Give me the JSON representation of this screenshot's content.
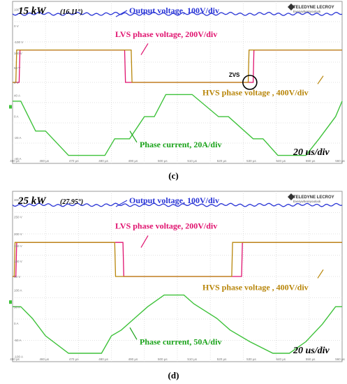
{
  "logo": {
    "brand": "TELEDYNE LECROY",
    "tagline": "Everywhereyoulook"
  },
  "colors": {
    "output": "#2a35d6",
    "lvs": "#e0136f",
    "hvs": "#b8860b",
    "current": "#3ec23a",
    "grid": "#d8d8d8",
    "annot_output": "#2a35d6",
    "annot_lvs": "#e0136f",
    "annot_hvs": "#b8860b",
    "annot_current": "#1aa31a"
  },
  "chart_data": [
    {
      "type": "line",
      "caption": "(c)",
      "power_label": "15 kW",
      "angle_label": "(16.11°)",
      "timebase": "20 us/div",
      "zvs_label": "ZVS",
      "annotations": {
        "output": "Output voltage, 100V/div",
        "lvs": "LVS phase voltage, 200V/div",
        "hvs": "HVS phase voltage , 400V/div",
        "current": "Phase current, 20A/div"
      },
      "left_ticks_top": [
        "100 V",
        "0 V",
        "-100 V"
      ],
      "left_ticks_mid": [
        "100 V",
        "50 V",
        "0 V"
      ],
      "left_ticks_bot": [
        "40 A",
        "0 A",
        "-20 A",
        "-40 A"
      ],
      "time_ticks": [
        "450 µs",
        "460 µs",
        "470 µs",
        "480 µs",
        "490 µs",
        "500 µs",
        "510 µs",
        "520 µs",
        "530 µs",
        "540 µs",
        "550 µs",
        "560 µs"
      ],
      "series": [
        {
          "key": "output",
          "x": [
            0,
            20,
            40,
            60,
            80,
            100,
            120,
            140,
            160,
            180,
            200
          ],
          "y": [
            0.93,
            0.93,
            0.93,
            0.93,
            0.93,
            0.93,
            0.93,
            0.93,
            0.93,
            0.93,
            0.93
          ]
        },
        {
          "key": "lvs",
          "x": [
            0,
            4,
            4.5,
            68,
            68.5,
            146,
            146.5,
            200
          ],
          "y": [
            0,
            0,
            1,
            1,
            0,
            0,
            1,
            1
          ]
        },
        {
          "key": "hvs",
          "x": [
            0,
            2,
            2.5,
            72,
            72.5,
            143,
            143.5,
            200
          ],
          "y": [
            0,
            0,
            1,
            1,
            0,
            0,
            1,
            1
          ]
        },
        {
          "key": "current",
          "x": [
            0,
            5,
            14,
            20,
            34,
            40,
            56,
            62,
            71,
            80,
            86,
            93,
            103,
            109,
            125,
            131,
            146,
            152,
            161,
            170,
            178,
            186,
            196,
            200
          ],
          "y": [
            0.48,
            0.48,
            -0.06,
            -0.06,
            -0.5,
            -0.5,
            -0.5,
            -0.2,
            -0.2,
            0.2,
            0.2,
            0.6,
            0.6,
            0.6,
            0.2,
            0.2,
            -0.2,
            -0.2,
            -0.5,
            -0.5,
            -0.5,
            -0.2,
            0.2,
            0.48
          ]
        }
      ]
    },
    {
      "type": "line",
      "caption": "(d)",
      "power_label": "25 kW",
      "angle_label": "(27.95°)",
      "timebase": "20 us/div",
      "annotations": {
        "output": "Output voltage, 100V/div",
        "lvs": "LVS phase voltage, 200V/div",
        "hvs": "HVS phase voltage , 400V/div",
        "current": "Phase current, 50A/div"
      },
      "left_ticks_top": [
        "300 V",
        "250 V",
        "200 V"
      ],
      "left_ticks_mid": [
        "150 V",
        "100 V",
        "50 V"
      ],
      "left_ticks_bot": [
        "100 A",
        "50 A",
        "0 A",
        "-50 A",
        "-100 A"
      ],
      "time_ticks": [
        "450 µs",
        "460 µs",
        "470 µs",
        "480 µs",
        "490 µs",
        "500 µs",
        "510 µs",
        "520 µs",
        "530 µs",
        "540 µs",
        "550 µs",
        "560 µs"
      ],
      "series": [
        {
          "key": "output",
          "x": [
            0,
            20,
            40,
            60,
            80,
            100,
            120,
            140,
            160,
            180,
            200
          ],
          "y": [
            0.9,
            0.9,
            0.9,
            0.9,
            0.9,
            0.9,
            0.9,
            0.9,
            0.9,
            0.9,
            0.9
          ]
        },
        {
          "key": "lvs",
          "x": [
            0,
            2,
            2.5,
            67,
            67.5,
            139,
            139.5,
            200
          ],
          "y": [
            0,
            0,
            1,
            1,
            0,
            0,
            1,
            1
          ]
        },
        {
          "key": "hvs",
          "x": [
            0,
            1,
            1.5,
            62,
            62.5,
            133,
            133.5,
            200
          ],
          "y": [
            0,
            0,
            1,
            1,
            0,
            0,
            1,
            1
          ]
        },
        {
          "key": "current",
          "x": [
            0,
            5,
            12,
            20,
            34,
            46,
            54,
            60,
            66,
            74,
            82,
            92,
            104,
            110,
            124,
            132,
            144,
            158,
            168,
            178,
            188,
            196,
            200
          ],
          "y": [
            0.3,
            0.3,
            0.1,
            -0.2,
            -0.5,
            -0.5,
            -0.5,
            -0.2,
            -0.1,
            0.1,
            0.3,
            0.5,
            0.5,
            0.35,
            0.1,
            -0.1,
            -0.3,
            -0.5,
            -0.5,
            -0.3,
            0.0,
            0.3,
            0.3
          ]
        }
      ]
    }
  ]
}
